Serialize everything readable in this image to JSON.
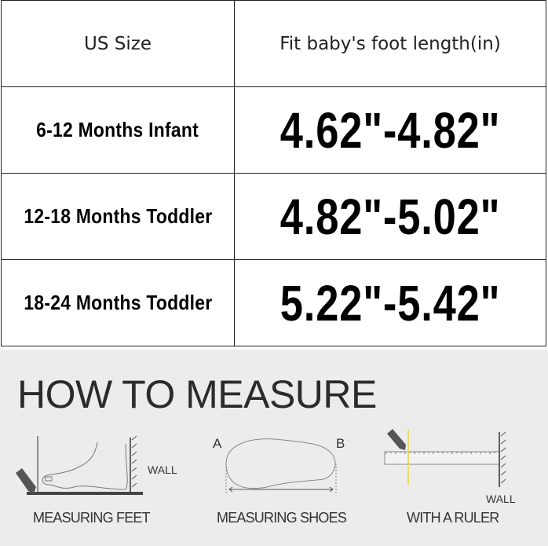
{
  "table": {
    "headers": [
      "US Size",
      "Fit baby's foot length(in)"
    ],
    "rows": [
      {
        "size": "6-12 Months Infant",
        "length": "4.62\"-4.82\""
      },
      {
        "size": "12-18 Months Toddler",
        "length": "4.82\"-5.02\""
      },
      {
        "size": "18-24 Months Toddler",
        "length": "5.22\"-5.42\""
      }
    ]
  },
  "measure": {
    "title": "HOW TO MEASURE",
    "feet_label": "MEASURING FEET",
    "feet_wall": "WALL",
    "shoes_label": "MEASURING SHOES",
    "point_a": "A",
    "point_b": "B",
    "ruler_label": "WITH A RULER",
    "ruler_wall": "WALL"
  }
}
